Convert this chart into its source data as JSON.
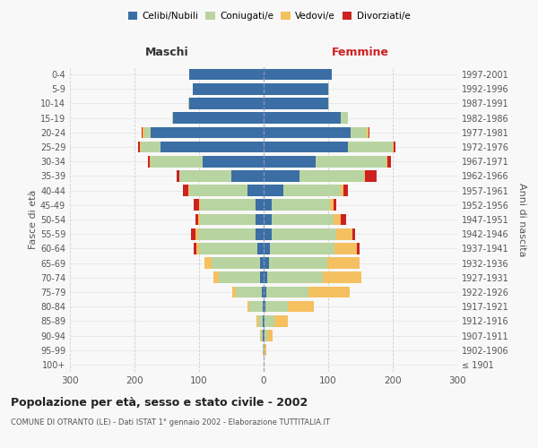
{
  "age_groups": [
    "100+",
    "95-99",
    "90-94",
    "85-89",
    "80-84",
    "75-79",
    "70-74",
    "65-69",
    "60-64",
    "55-59",
    "50-54",
    "45-49",
    "40-44",
    "35-39",
    "30-34",
    "25-29",
    "20-24",
    "15-19",
    "10-14",
    "5-9",
    "0-4"
  ],
  "birth_years": [
    "≤ 1901",
    "1902-1906",
    "1907-1911",
    "1912-1916",
    "1917-1921",
    "1922-1926",
    "1927-1931",
    "1932-1936",
    "1937-1941",
    "1942-1946",
    "1947-1951",
    "1952-1956",
    "1957-1961",
    "1962-1966",
    "1967-1971",
    "1972-1976",
    "1977-1981",
    "1982-1986",
    "1987-1991",
    "1992-1996",
    "1997-2001"
  ],
  "male": {
    "celibi": [
      0,
      0,
      1,
      1,
      2,
      3,
      5,
      6,
      10,
      12,
      13,
      13,
      25,
      50,
      95,
      160,
      175,
      140,
      115,
      110,
      115
    ],
    "coniugati": [
      0,
      1,
      3,
      8,
      20,
      40,
      65,
      75,
      90,
      90,
      85,
      85,
      90,
      80,
      80,
      30,
      10,
      2,
      1,
      0,
      0
    ],
    "vedovi": [
      0,
      0,
      1,
      2,
      3,
      5,
      8,
      10,
      4,
      3,
      3,
      2,
      2,
      1,
      2,
      2,
      2,
      0,
      0,
      0,
      0
    ],
    "divorziati": [
      0,
      0,
      0,
      0,
      0,
      0,
      0,
      0,
      5,
      8,
      5,
      8,
      8,
      4,
      2,
      2,
      2,
      0,
      0,
      0,
      0
    ]
  },
  "female": {
    "nubili": [
      0,
      0,
      1,
      2,
      3,
      4,
      6,
      8,
      10,
      12,
      13,
      13,
      30,
      55,
      80,
      130,
      135,
      120,
      100,
      100,
      105
    ],
    "coniugate": [
      0,
      2,
      5,
      15,
      35,
      65,
      85,
      90,
      100,
      100,
      95,
      90,
      90,
      100,
      110,
      70,
      25,
      10,
      2,
      1,
      0
    ],
    "vedove": [
      0,
      2,
      8,
      20,
      40,
      65,
      60,
      50,
      35,
      25,
      12,
      5,
      3,
      2,
      2,
      2,
      2,
      0,
      0,
      0,
      0
    ],
    "divorziate": [
      0,
      0,
      0,
      0,
      0,
      0,
      0,
      0,
      4,
      5,
      8,
      5,
      8,
      18,
      5,
      2,
      2,
      0,
      0,
      0,
      0
    ]
  },
  "colors": {
    "celibi": "#3a6ea5",
    "coniugati": "#b8d4a0",
    "vedovi": "#f5c060",
    "divorziati": "#cc2222"
  },
  "title": "Popolazione per età, sesso e stato civile - 2002",
  "subtitle": "COMUNE DI OTRANTO (LE) - Dati ISTAT 1° gennaio 2002 - Elaborazione TUTTITALIA.IT",
  "xlabel_left": "Maschi",
  "xlabel_right": "Femmine",
  "ylabel_left": "Fasce di età",
  "ylabel_right": "Anni di nascita",
  "xlim": 300,
  "bg_color": "#f8f8f8",
  "grid_color": "#cccccc"
}
